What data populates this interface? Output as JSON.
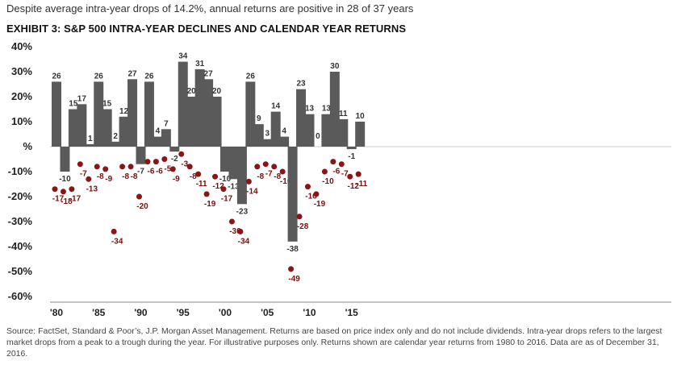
{
  "header": {
    "subtitle": "Despite average intra-year drops of 14.2%, annual returns are positive in 28 of 37 years",
    "title": "EXHIBIT 3: S&P 500 INTRA-YEAR DECLINES AND CALENDAR YEAR RETURNS"
  },
  "colors": {
    "bar": "#5a5a5a",
    "dot": "#8b1414",
    "dot_label": "#7a0e0e",
    "bar_label": "#333333"
  },
  "chart_data": {
    "type": "bar",
    "title": "EXHIBIT 3: S&P 500 INTRA-YEAR DECLINES AND CALENDAR YEAR RETURNS",
    "ylim": [
      -60,
      40
    ],
    "yticks": [
      40,
      30,
      20,
      10,
      0,
      -10,
      -20,
      -30,
      -40,
      -50,
      -60
    ],
    "ytick_labels": [
      "40%",
      "30%",
      "20%",
      "10%",
      "%",
      "-10%",
      "-20%",
      "-30%",
      "-40%",
      "-50%",
      "-60%"
    ],
    "years": [
      1980,
      1981,
      1982,
      1983,
      1984,
      1985,
      1986,
      1987,
      1988,
      1989,
      1990,
      1991,
      1992,
      1993,
      1994,
      1995,
      1996,
      1997,
      1998,
      1999,
      2000,
      2001,
      2002,
      2003,
      2004,
      2005,
      2006,
      2007,
      2008,
      2009,
      2010,
      2011,
      2012,
      2013,
      2014,
      2015,
      2016
    ],
    "xtick_years": [
      1980,
      1985,
      1990,
      1995,
      2000,
      2005,
      2010,
      2015
    ],
    "xtick_labels": [
      "'80",
      "'85",
      "'90",
      "'95",
      "'00",
      "'05",
      "'10",
      "'15"
    ],
    "series": [
      {
        "kind": "bar",
        "values": [
          26,
          -10,
          15,
          17,
          1,
          26,
          15,
          2,
          12,
          27,
          -7,
          26,
          4,
          7,
          -2,
          34,
          20,
          31,
          27,
          20,
          -10,
          -13,
          -23,
          26,
          9,
          3,
          14,
          4,
          -38,
          23,
          13,
          0,
          13,
          30,
          11,
          -1,
          10
        ]
      },
      {
        "kind": "dot",
        "values": [
          -17,
          -18,
          -17,
          -7,
          -13,
          -8,
          -9,
          -34,
          -8,
          -8,
          -20,
          -6,
          -6,
          -5,
          -9,
          -3,
          -8,
          -11,
          -19,
          -12,
          -17,
          -30,
          -34,
          -14,
          -8,
          -7,
          -8,
          -10,
          -49,
          -28,
          -16,
          -19,
          -10,
          -6,
          -7,
          -12,
          -11
        ]
      }
    ],
    "grid": false
  },
  "footnote": {
    "text": "Source: FactSet, Standard & Poor’s, J.P. Morgan Asset Management. Returns are based on price index only and do not include dividends. Intra-year drops refers to the largest market drops from a peak to a trough during the year. For illustrative purposes only. Returns shown are calendar year returns from 1980 to 2016. Data are as of December 31, 2016."
  }
}
